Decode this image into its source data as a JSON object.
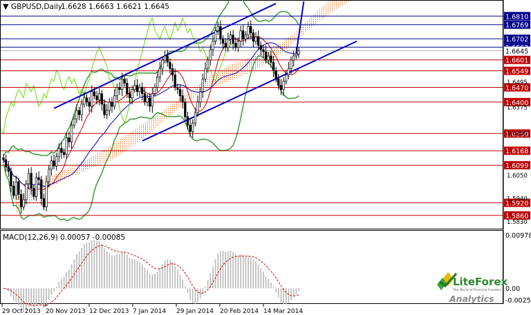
{
  "header": {
    "symbol": "GBPUSD,Daily",
    "ohlc": "1.6628 1.6663 1.6621 1.6645"
  },
  "macd_panel": {
    "label": "MACD(12,26,9) 0.00057 -0.00085",
    "scale_labels": [
      "0.00978",
      "0.00",
      "-0.00253"
    ]
  },
  "logo": {
    "brand": "LiteForex",
    "tagline": "The World of Financial Freedom",
    "subtitle": "Analytics"
  },
  "colors": {
    "candle": "#000000",
    "resistance_line": "#c00000",
    "support_line": "#c00000",
    "blue_level": "#00008b",
    "channel": "#0000cc",
    "bollinger": "#3a9a3a",
    "kumo": "#e89050",
    "tenkan": "#c00000",
    "kijun": "#0000cc",
    "chikou": "#66dd00",
    "macd_hist": "#b8b8b8",
    "macd_signal": "#dd0000",
    "label_red": "#c00000",
    "label_blue": "#00008b"
  },
  "chart_data": {
    "type": "candlestick",
    "instrument": "GBPUSD",
    "timeframe": "Daily",
    "x_tick_labels": [
      "29 Oct 2013",
      "20 Nov 2013",
      "12 Dec 2013",
      "7 Jan 2014",
      "29 Jan 2014",
      "20 Feb 2014",
      "14 Mar 2014"
    ],
    "y_range": [
      1.58,
      1.688
    ],
    "y_tick_labels": [
      "1.6495",
      "1.6375",
      "1.6250",
      "1.6050",
      "1.5940",
      "1.5830"
    ],
    "horizontal_levels": [
      {
        "value": 1.681,
        "style": "blue"
      },
      {
        "value": 1.6769,
        "style": "blue"
      },
      {
        "value": 1.6702,
        "style": "blue"
      },
      {
        "value": 1.6662,
        "style": "blue"
      },
      {
        "value": 1.6645,
        "style": "current"
      },
      {
        "value": 1.6601,
        "style": "red"
      },
      {
        "value": 1.6549,
        "style": "red"
      },
      {
        "value": 1.647,
        "style": "red"
      },
      {
        "value": 1.64,
        "style": "red"
      },
      {
        "value": 1.625,
        "style": "red"
      },
      {
        "value": 1.6168,
        "style": "red"
      },
      {
        "value": 1.6099,
        "style": "red"
      },
      {
        "value": 1.592,
        "style": "red"
      },
      {
        "value": 1.586,
        "style": "red"
      }
    ],
    "candles_close": [
      1.6125,
      1.609,
      1.607,
      1.6,
      1.5955,
      1.602,
      1.596,
      1.59,
      1.5935,
      1.601,
      1.606,
      1.599,
      1.595,
      1.604,
      1.603,
      1.594,
      1.59,
      1.602,
      1.608,
      1.612,
      1.6095,
      1.614,
      1.618,
      1.616,
      1.615,
      1.623,
      1.621,
      1.629,
      1.632,
      1.636,
      1.634,
      1.639,
      1.642,
      1.64,
      1.638,
      1.645,
      1.643,
      1.641,
      1.644,
      1.639,
      1.634,
      1.636,
      1.64,
      1.638,
      1.643,
      1.647,
      1.646,
      1.651,
      1.649,
      1.644,
      1.642,
      1.646,
      1.648,
      1.645,
      1.647,
      1.644,
      1.64,
      1.642,
      1.638,
      1.644,
      1.647,
      1.652,
      1.656,
      1.66,
      1.662,
      1.659,
      1.656,
      1.653,
      1.647,
      1.646,
      1.643,
      1.64,
      1.633,
      1.629,
      1.626,
      1.63,
      1.635,
      1.64,
      1.645,
      1.651,
      1.656,
      1.66,
      1.665,
      1.669,
      1.674,
      1.676,
      1.67,
      1.668,
      1.666,
      1.67,
      1.672,
      1.668,
      1.666,
      1.669,
      1.674,
      1.67,
      1.672,
      1.676,
      1.673,
      1.669,
      1.671,
      1.667,
      1.665,
      1.664,
      1.66,
      1.662,
      1.659,
      1.655,
      1.651,
      1.648,
      1.646,
      1.65,
      1.653,
      1.656,
      1.66,
      1.662,
      1.663,
      1.6645
    ],
    "channel_upper": {
      "start": [
        1.637,
        20
      ],
      "end": [
        1.687,
        108
      ]
    },
    "channel_lower": {
      "start": [
        1.6215,
        55
      ],
      "end": [
        1.669,
        140
      ]
    },
    "macd_range": [
      -0.00253,
      0.00978
    ]
  }
}
